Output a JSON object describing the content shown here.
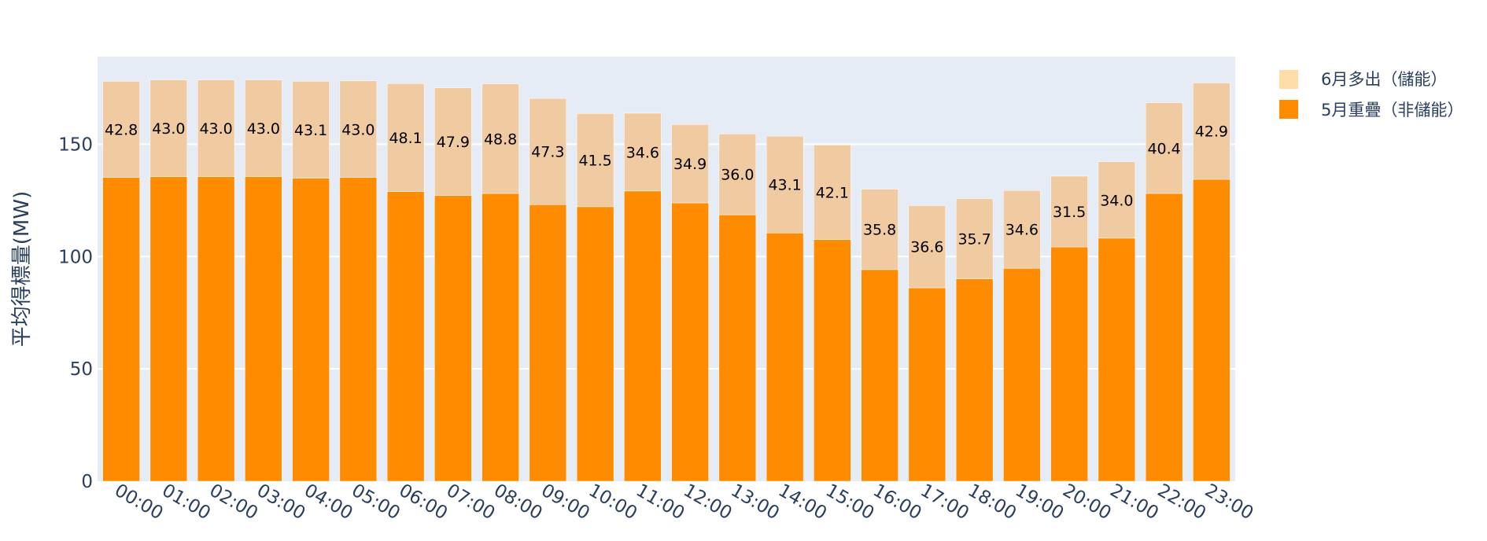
{
  "chart_data": {
    "type": "bar",
    "barmode": "stack",
    "title": "",
    "xlabel": "",
    "ylabel": "平均得標量(MW)",
    "ylim": [
      0,
      189
    ],
    "yticks": [
      0,
      50,
      100,
      150
    ],
    "grid": true,
    "legend_position": "top-right",
    "categories": [
      "00:00",
      "01:00",
      "02:00",
      "03:00",
      "04:00",
      "05:00",
      "06:00",
      "07:00",
      "08:00",
      "09:00",
      "10:00",
      "11:00",
      "12:00",
      "13:00",
      "14:00",
      "15:00",
      "16:00",
      "17:00",
      "18:00",
      "19:00",
      "20:00",
      "21:00",
      "22:00",
      "23:00"
    ],
    "series": [
      {
        "name": "5月重疊（非儲能）",
        "color": "#ff8c00",
        "values": [
          135.2,
          135.6,
          135.6,
          135.6,
          134.9,
          135.2,
          128.9,
          127.2,
          128.1,
          123.1,
          122.2,
          129.2,
          123.9,
          118.6,
          110.5,
          107.6,
          94.2,
          86.1,
          90.1,
          94.8,
          104.3,
          108.2,
          128.1,
          134.4
        ]
      },
      {
        "name": "6月多出（儲能）",
        "color": "#f0cba2",
        "values": [
          42.8,
          43.0,
          43.0,
          43.0,
          43.1,
          43.0,
          48.1,
          47.9,
          48.8,
          47.3,
          41.5,
          34.6,
          34.9,
          36.0,
          43.1,
          42.1,
          35.8,
          36.6,
          35.7,
          34.6,
          31.5,
          34.0,
          40.4,
          42.9
        ],
        "labels": [
          "42.8",
          "43.0",
          "43.0",
          "43.0",
          "43.1",
          "43.0",
          "48.1",
          "47.9",
          "48.8",
          "47.3",
          "41.5",
          "34.6",
          "34.9",
          "36.0",
          "43.1",
          "42.1",
          "35.8",
          "36.6",
          "35.7",
          "34.6",
          "31.5",
          "34.0",
          "40.4",
          "42.9"
        ]
      }
    ],
    "legend": [
      {
        "label": "6月多出（儲能）",
        "color": "#ffdca8"
      },
      {
        "label": "5月重疊（非儲能）",
        "color": "#ff8c00"
      }
    ]
  }
}
